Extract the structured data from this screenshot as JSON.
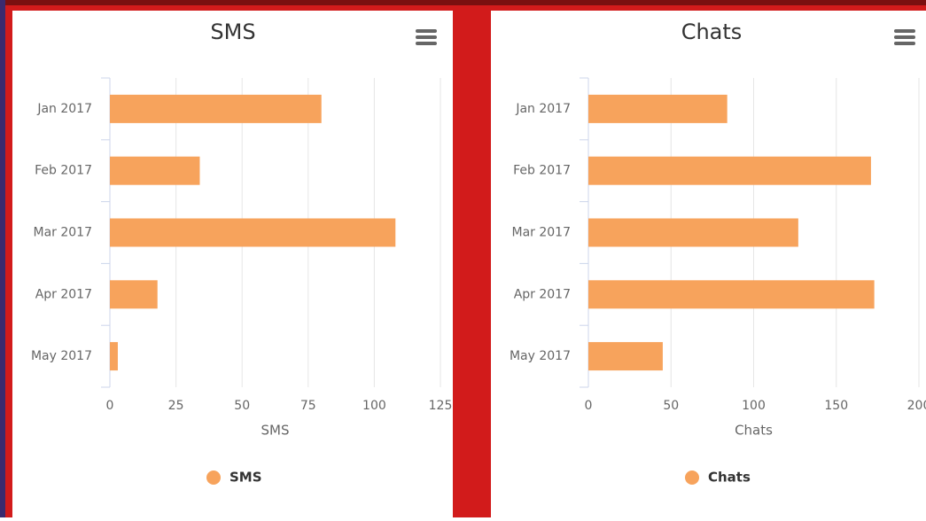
{
  "chart_data": [
    {
      "type": "bar",
      "orientation": "horizontal",
      "title": "SMS",
      "categories": [
        "Jan 2017",
        "Feb 2017",
        "Mar 2017",
        "Apr 2017",
        "May 2017"
      ],
      "series": [
        {
          "name": "SMS",
          "color": "#f7a35c",
          "values": [
            80,
            34,
            108,
            18,
            3
          ]
        }
      ],
      "xlabel": "SMS",
      "xlim": [
        0,
        125
      ],
      "xticks": [
        0,
        25,
        50,
        75,
        100,
        125
      ],
      "grid": true
    },
    {
      "type": "bar",
      "orientation": "horizontal",
      "title": "Chats",
      "categories": [
        "Jan 2017",
        "Feb 2017",
        "Mar 2017",
        "Apr 2017",
        "May 2017"
      ],
      "series": [
        {
          "name": "Chats",
          "color": "#f7a35c",
          "values": [
            84,
            171,
            127,
            173,
            45
          ]
        }
      ],
      "xlabel": "Chats",
      "xlim": [
        0,
        200
      ],
      "xticks": [
        0,
        50,
        100,
        150,
        200
      ],
      "grid": true
    }
  ]
}
